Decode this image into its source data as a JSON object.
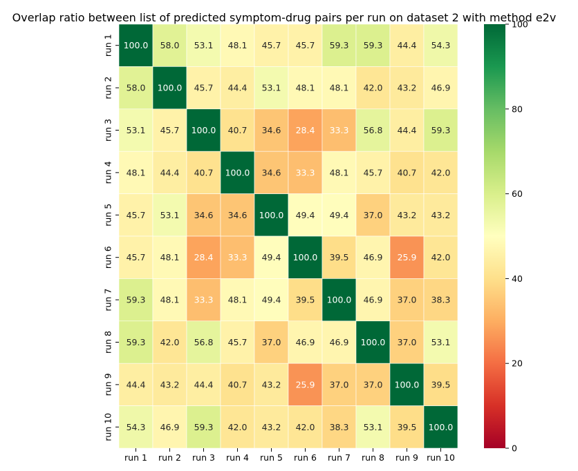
{
  "chart_data": {
    "type": "heatmap",
    "title": "Overlap ratio between list of predicted symptom-drug pairs per run on dataset 2 with method e2v",
    "x_labels": [
      "run 1",
      "run 2",
      "run 3",
      "run 4",
      "run 5",
      "run 6",
      "run 7",
      "run 8",
      "run 9",
      "run 10"
    ],
    "y_labels": [
      "run 1",
      "run 2",
      "run 3",
      "run 4",
      "run 5",
      "run 6",
      "run 7",
      "run 8",
      "run 9",
      "run 10"
    ],
    "values": [
      [
        100.0,
        58.0,
        53.1,
        48.1,
        45.7,
        45.7,
        59.3,
        59.3,
        44.4,
        54.3
      ],
      [
        58.0,
        100.0,
        45.7,
        44.4,
        53.1,
        48.1,
        48.1,
        42.0,
        43.2,
        46.9
      ],
      [
        53.1,
        45.7,
        100.0,
        40.7,
        34.6,
        28.4,
        33.3,
        56.8,
        44.4,
        59.3
      ],
      [
        48.1,
        44.4,
        40.7,
        100.0,
        34.6,
        33.3,
        48.1,
        45.7,
        40.7,
        42.0
      ],
      [
        45.7,
        53.1,
        34.6,
        34.6,
        100.0,
        49.4,
        49.4,
        37.0,
        43.2,
        43.2
      ],
      [
        45.7,
        48.1,
        28.4,
        33.3,
        49.4,
        100.0,
        39.5,
        46.9,
        25.9,
        42.0
      ],
      [
        59.3,
        48.1,
        33.3,
        48.1,
        49.4,
        39.5,
        100.0,
        46.9,
        37.0,
        38.3
      ],
      [
        59.3,
        42.0,
        56.8,
        45.7,
        37.0,
        46.9,
        46.9,
        100.0,
        37.0,
        53.1
      ],
      [
        44.4,
        43.2,
        44.4,
        40.7,
        43.2,
        25.9,
        37.0,
        37.0,
        100.0,
        39.5
      ],
      [
        54.3,
        46.9,
        59.3,
        42.0,
        43.2,
        42.0,
        38.3,
        53.1,
        39.5,
        100.0
      ]
    ],
    "value_format": "0.1f",
    "colormap": "RdYlGn",
    "vmin": 0,
    "vmax": 100,
    "colorbar_ticks": [
      0,
      20,
      40,
      60,
      80,
      100
    ],
    "colors": {
      "low": "#a50026",
      "mid": "#ffffbf",
      "high": "#006837",
      "cell_border": "#ffffff"
    }
  }
}
